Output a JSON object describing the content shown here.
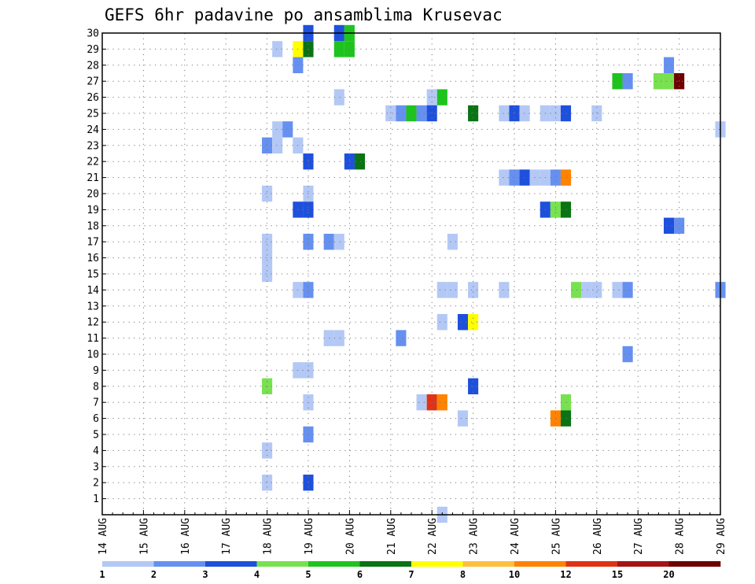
{
  "chart_data": {
    "type": "heatmap",
    "title": "GEFS 6hr padavine po ansamblima Krusevac",
    "x_tick_labels": [
      "14 AUG",
      "15 AUG",
      "16 AUG",
      "17 AUG",
      "18 AUG",
      "19 AUG",
      "20 AUG",
      "21 AUG",
      "22 AUG",
      "23 AUG",
      "24 AUG",
      "25 AUG",
      "26 AUG",
      "27 AUG",
      "28 AUG",
      "29 AUG"
    ],
    "x_range": [
      0,
      60
    ],
    "y_tick_labels": [
      "1",
      "2",
      "3",
      "4",
      "5",
      "6",
      "7",
      "8",
      "9",
      "10",
      "11",
      "12",
      "13",
      "14",
      "15",
      "16",
      "17",
      "18",
      "19",
      "20",
      "21",
      "22",
      "23",
      "24",
      "25",
      "26",
      "27",
      "28",
      "29",
      "30"
    ],
    "y_range": [
      0,
      30
    ],
    "grid": true,
    "color_scale": {
      "labels": [
        "1",
        "2",
        "3",
        "4",
        "5",
        "6",
        "7",
        "8",
        "10",
        "12",
        "15",
        "20"
      ],
      "colors": [
        "#b4c8f5",
        "#6690f0",
        "#1e50dc",
        "#78e150",
        "#1ec31e",
        "#0a7314",
        "#ffff00",
        "#ffbe3c",
        "#ff8200",
        "#e13214",
        "#a51414",
        "#6e0000"
      ]
    },
    "cells": [
      {
        "member": 30,
        "step": 20,
        "level": 3
      },
      {
        "member": 30,
        "step": 23,
        "level": 3
      },
      {
        "member": 30,
        "step": 24,
        "level": 5
      },
      {
        "member": 29,
        "step": 17,
        "level": 1
      },
      {
        "member": 29,
        "step": 19,
        "level": 7
      },
      {
        "member": 29,
        "step": 20,
        "level": 6
      },
      {
        "member": 29,
        "step": 23,
        "level": 5
      },
      {
        "member": 29,
        "step": 24,
        "level": 5
      },
      {
        "member": 28,
        "step": 19,
        "level": 2
      },
      {
        "member": 28,
        "step": 55,
        "level": 2
      },
      {
        "member": 27,
        "step": 50,
        "level": 5
      },
      {
        "member": 27,
        "step": 51,
        "level": 2
      },
      {
        "member": 27,
        "step": 54,
        "level": 4
      },
      {
        "member": 27,
        "step": 55,
        "level": 4
      },
      {
        "member": 27,
        "step": 56,
        "level": 12
      },
      {
        "member": 26,
        "step": 23,
        "level": 1
      },
      {
        "member": 26,
        "step": 32,
        "level": 1
      },
      {
        "member": 26,
        "step": 33,
        "level": 5
      },
      {
        "member": 25,
        "step": 28,
        "level": 1
      },
      {
        "member": 25,
        "step": 29,
        "level": 2
      },
      {
        "member": 25,
        "step": 30,
        "level": 5
      },
      {
        "member": 25,
        "step": 31,
        "level": 2
      },
      {
        "member": 25,
        "step": 32,
        "level": 3
      },
      {
        "member": 25,
        "step": 36,
        "level": 6
      },
      {
        "member": 25,
        "step": 39,
        "level": 1
      },
      {
        "member": 25,
        "step": 40,
        "level": 3
      },
      {
        "member": 25,
        "step": 41,
        "level": 1
      },
      {
        "member": 25,
        "step": 43,
        "level": 1
      },
      {
        "member": 25,
        "step": 44,
        "level": 1
      },
      {
        "member": 25,
        "step": 45,
        "level": 3
      },
      {
        "member": 25,
        "step": 48,
        "level": 1
      },
      {
        "member": 24,
        "step": 17,
        "level": 1
      },
      {
        "member": 24,
        "step": 18,
        "level": 2
      },
      {
        "member": 24,
        "step": 60,
        "level": 1
      },
      {
        "member": 23,
        "step": 16,
        "level": 2
      },
      {
        "member": 23,
        "step": 17,
        "level": 1
      },
      {
        "member": 23,
        "step": 19,
        "level": 1
      },
      {
        "member": 22,
        "step": 20,
        "level": 3
      },
      {
        "member": 22,
        "step": 24,
        "level": 3
      },
      {
        "member": 22,
        "step": 25,
        "level": 6
      },
      {
        "member": 21,
        "step": 39,
        "level": 1
      },
      {
        "member": 21,
        "step": 40,
        "level": 2
      },
      {
        "member": 21,
        "step": 41,
        "level": 3
      },
      {
        "member": 21,
        "step": 42,
        "level": 1
      },
      {
        "member": 21,
        "step": 43,
        "level": 1
      },
      {
        "member": 21,
        "step": 44,
        "level": 2
      },
      {
        "member": 21,
        "step": 45,
        "level": 9
      },
      {
        "member": 20,
        "step": 16,
        "level": 1
      },
      {
        "member": 20,
        "step": 20,
        "level": 1
      },
      {
        "member": 19,
        "step": 19,
        "level": 3
      },
      {
        "member": 19,
        "step": 20,
        "level": 3
      },
      {
        "member": 19,
        "step": 43,
        "level": 3
      },
      {
        "member": 19,
        "step": 44,
        "level": 4
      },
      {
        "member": 19,
        "step": 45,
        "level": 6
      },
      {
        "member": 18,
        "step": 55,
        "level": 3
      },
      {
        "member": 18,
        "step": 56,
        "level": 2
      },
      {
        "member": 17,
        "step": 16,
        "level": 1
      },
      {
        "member": 17,
        "step": 20,
        "level": 2
      },
      {
        "member": 17,
        "step": 22,
        "level": 2
      },
      {
        "member": 17,
        "step": 23,
        "level": 1
      },
      {
        "member": 17,
        "step": 34,
        "level": 1
      },
      {
        "member": 16,
        "step": 16,
        "level": 1
      },
      {
        "member": 15,
        "step": 16,
        "level": 1
      },
      {
        "member": 14,
        "step": 19,
        "level": 1
      },
      {
        "member": 14,
        "step": 20,
        "level": 2
      },
      {
        "member": 14,
        "step": 33,
        "level": 1
      },
      {
        "member": 14,
        "step": 34,
        "level": 1
      },
      {
        "member": 14,
        "step": 36,
        "level": 1
      },
      {
        "member": 14,
        "step": 39,
        "level": 1
      },
      {
        "member": 14,
        "step": 46,
        "level": 4
      },
      {
        "member": 14,
        "step": 47,
        "level": 1
      },
      {
        "member": 14,
        "step": 48,
        "level": 1
      },
      {
        "member": 14,
        "step": 50,
        "level": 1
      },
      {
        "member": 14,
        "step": 51,
        "level": 2
      },
      {
        "member": 14,
        "step": 60,
        "level": 2
      },
      {
        "member": 12,
        "step": 33,
        "level": 1
      },
      {
        "member": 12,
        "step": 35,
        "level": 3
      },
      {
        "member": 12,
        "step": 36,
        "level": 7
      },
      {
        "member": 11,
        "step": 22,
        "level": 1
      },
      {
        "member": 11,
        "step": 23,
        "level": 1
      },
      {
        "member": 11,
        "step": 29,
        "level": 2
      },
      {
        "member": 10,
        "step": 51,
        "level": 2
      },
      {
        "member": 9,
        "step": 19,
        "level": 1
      },
      {
        "member": 9,
        "step": 20,
        "level": 1
      },
      {
        "member": 8,
        "step": 16,
        "level": 4
      },
      {
        "member": 8,
        "step": 36,
        "level": 3
      },
      {
        "member": 7,
        "step": 20,
        "level": 1
      },
      {
        "member": 7,
        "step": 31,
        "level": 1
      },
      {
        "member": 7,
        "step": 32,
        "level": 10
      },
      {
        "member": 7,
        "step": 33,
        "level": 9
      },
      {
        "member": 7,
        "step": 45,
        "level": 4
      },
      {
        "member": 6,
        "step": 35,
        "level": 1
      },
      {
        "member": 6,
        "step": 44,
        "level": 9
      },
      {
        "member": 6,
        "step": 45,
        "level": 6
      },
      {
        "member": 5,
        "step": 20,
        "level": 2
      },
      {
        "member": 4,
        "step": 16,
        "level": 1
      },
      {
        "member": 2,
        "step": 16,
        "level": 1
      },
      {
        "member": 2,
        "step": 20,
        "level": 3
      },
      {
        "member": 0,
        "step": 33,
        "level": 1
      }
    ]
  }
}
